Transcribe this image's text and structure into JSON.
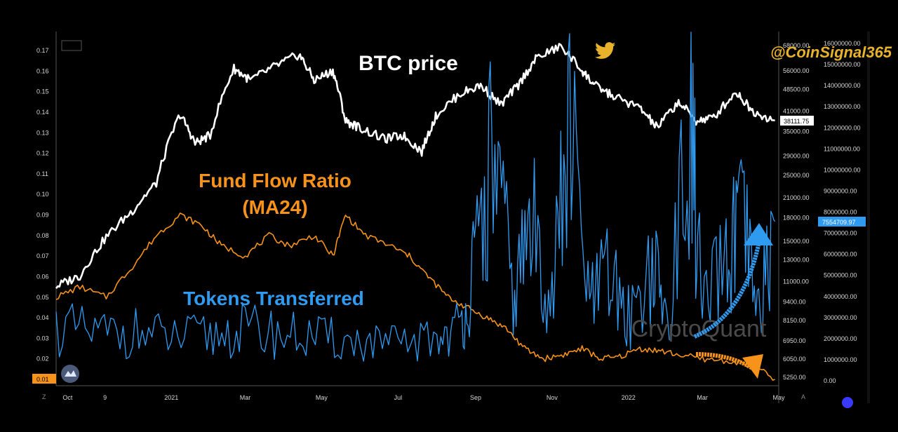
{
  "handle": {
    "text": "@CoinSignal365",
    "icon": "twitter-bird-icon",
    "color": "#e8b32a"
  },
  "watermark": "CryptoQuant",
  "annotations": {
    "btc": {
      "text": "BTC price",
      "color": "#ffffff"
    },
    "ffr_line1": {
      "text": "Fund Flow Ratio",
      "color": "#f7931a"
    },
    "ffr_line2": {
      "text": "(MA24)",
      "color": "#f7931a"
    },
    "tokens": {
      "text": "Tokens Transferred",
      "color": "#2f9bf0"
    }
  },
  "axis_labels": {
    "left": [
      "0.17",
      "0.16",
      "0.15",
      "0.14",
      "0.13",
      "0.12",
      "0.11",
      "0.10",
      "0.09",
      "0.08",
      "0.07",
      "0.06",
      "0.05",
      "0.04",
      "0.03",
      "0.02"
    ],
    "left_current": "0.01",
    "price": [
      "68000.00",
      "56000.00",
      "48500.00",
      "41000.00",
      "35000.00",
      "29000.00",
      "25000.00",
      "21000.00",
      "18000.00",
      "15000.00",
      "13000.00",
      "11000.00",
      "9400.00",
      "8150.00",
      "6950.00",
      "6050.00",
      "5250.00"
    ],
    "price_current": "38111.75",
    "tokens": [
      "16000000.00",
      "15000000.00",
      "14000000.00",
      "13000000.00",
      "12000000.00",
      "11000000.00",
      "10000000.00",
      "9000000.00",
      "8000000.00",
      "7000000.00",
      "6000000.00",
      "5000000.00",
      "4000000.00",
      "3000000.00",
      "2000000.00",
      "1000000.00",
      "0.00"
    ],
    "tokens_current": "7554709.97",
    "x": [
      "Oct",
      "9",
      "2021",
      "Mar",
      "May",
      "Jul",
      "Sep",
      "Nov",
      "2022",
      "Mar",
      "May"
    ]
  },
  "colors": {
    "btc": "#ffffff",
    "ffr": "#f7931a",
    "tokens": "#2f9bf0",
    "bg": "#000000",
    "label_box_orange": "#f7931a",
    "label_box_blue": "#2f9bf0"
  },
  "chart_data": {
    "type": "line",
    "x_range": [
      "2020-10-01",
      "2022-05-01"
    ],
    "log_price_axis": true,
    "series": [
      {
        "name": "BTC price",
        "axis": "price",
        "x": [
          "2020-10-01",
          "2020-10-20",
          "2020-11-10",
          "2020-12-01",
          "2020-12-20",
          "2021-01-08",
          "2021-01-20",
          "2021-02-01",
          "2021-02-20",
          "2021-03-05",
          "2021-03-25",
          "2021-04-13",
          "2021-04-25",
          "2021-05-10",
          "2021-05-20",
          "2021-06-01",
          "2021-06-20",
          "2021-07-05",
          "2021-07-20",
          "2021-08-01",
          "2021-08-20",
          "2021-09-05",
          "2021-09-21",
          "2021-10-05",
          "2021-10-20",
          "2021-11-08",
          "2021-11-25",
          "2021-12-05",
          "2021-12-20",
          "2022-01-10",
          "2022-01-24",
          "2022-02-10",
          "2022-02-24",
          "2022-03-10",
          "2022-03-28",
          "2022-04-10",
          "2022-04-28"
        ],
        "y": [
          10600,
          11500,
          15500,
          19000,
          23500,
          40000,
          32000,
          34000,
          57000,
          52000,
          58000,
          63500,
          52000,
          56000,
          38000,
          36000,
          33000,
          34000,
          30000,
          40000,
          47000,
          50000,
          43000,
          50000,
          62000,
          67500,
          56000,
          50000,
          46000,
          42000,
          36000,
          44000,
          38000,
          39000,
          47500,
          41000,
          38111.75
        ]
      },
      {
        "name": "Fund Flow Ratio (MA24)",
        "axis": "left",
        "x": [
          "2020-10-01",
          "2020-10-20",
          "2020-11-10",
          "2020-12-01",
          "2020-12-20",
          "2021-01-08",
          "2021-01-25",
          "2021-02-10",
          "2021-03-01",
          "2021-03-20",
          "2021-04-05",
          "2021-04-25",
          "2021-05-10",
          "2021-05-20",
          "2021-06-05",
          "2021-06-25",
          "2021-07-10",
          "2021-07-25",
          "2021-08-10",
          "2021-08-25",
          "2021-09-10",
          "2021-09-25",
          "2021-10-10",
          "2021-10-25",
          "2021-11-10",
          "2021-11-25",
          "2021-12-10",
          "2021-12-25",
          "2022-01-10",
          "2022-01-25",
          "2022-02-10",
          "2022-03-01",
          "2022-03-20",
          "2022-04-10",
          "2022-04-28"
        ],
        "y": [
          0.05,
          0.055,
          0.05,
          0.065,
          0.08,
          0.09,
          0.085,
          0.075,
          0.07,
          0.08,
          0.075,
          0.08,
          0.07,
          0.09,
          0.08,
          0.075,
          0.07,
          0.06,
          0.05,
          0.045,
          0.04,
          0.035,
          0.025,
          0.02,
          0.022,
          0.025,
          0.02,
          0.021,
          0.025,
          0.024,
          0.022,
          0.02,
          0.019,
          0.017,
          0.01
        ]
      },
      {
        "name": "Tokens Transferred",
        "axis": "tokens",
        "x": [
          "2020-10-01",
          "2020-11-01",
          "2020-12-01",
          "2021-01-01",
          "2021-02-01",
          "2021-03-01",
          "2021-04-01",
          "2021-05-01",
          "2021-06-01",
          "2021-07-01",
          "2021-08-01",
          "2021-08-20",
          "2021-09-01",
          "2021-09-15",
          "2021-10-01",
          "2021-10-15",
          "2021-11-01",
          "2021-11-15",
          "2021-12-01",
          "2021-12-15",
          "2022-01-01",
          "2022-01-20",
          "2022-02-01",
          "2022-02-20",
          "2022-03-01",
          "2022-03-20",
          "2022-04-01",
          "2022-04-15",
          "2022-04-28"
        ],
        "y": [
          2500000,
          2200000,
          2300000,
          2000000,
          2100000,
          2400000,
          2200000,
          2000000,
          1800000,
          1700000,
          2000000,
          2600000,
          5500000,
          11000000,
          3800000,
          7500000,
          4000000,
          12000000,
          3500000,
          5000000,
          3000000,
          5500000,
          2800000,
          11800000,
          3200000,
          5500000,
          7500000,
          3000000,
          7554709.97
        ]
      }
    ]
  }
}
